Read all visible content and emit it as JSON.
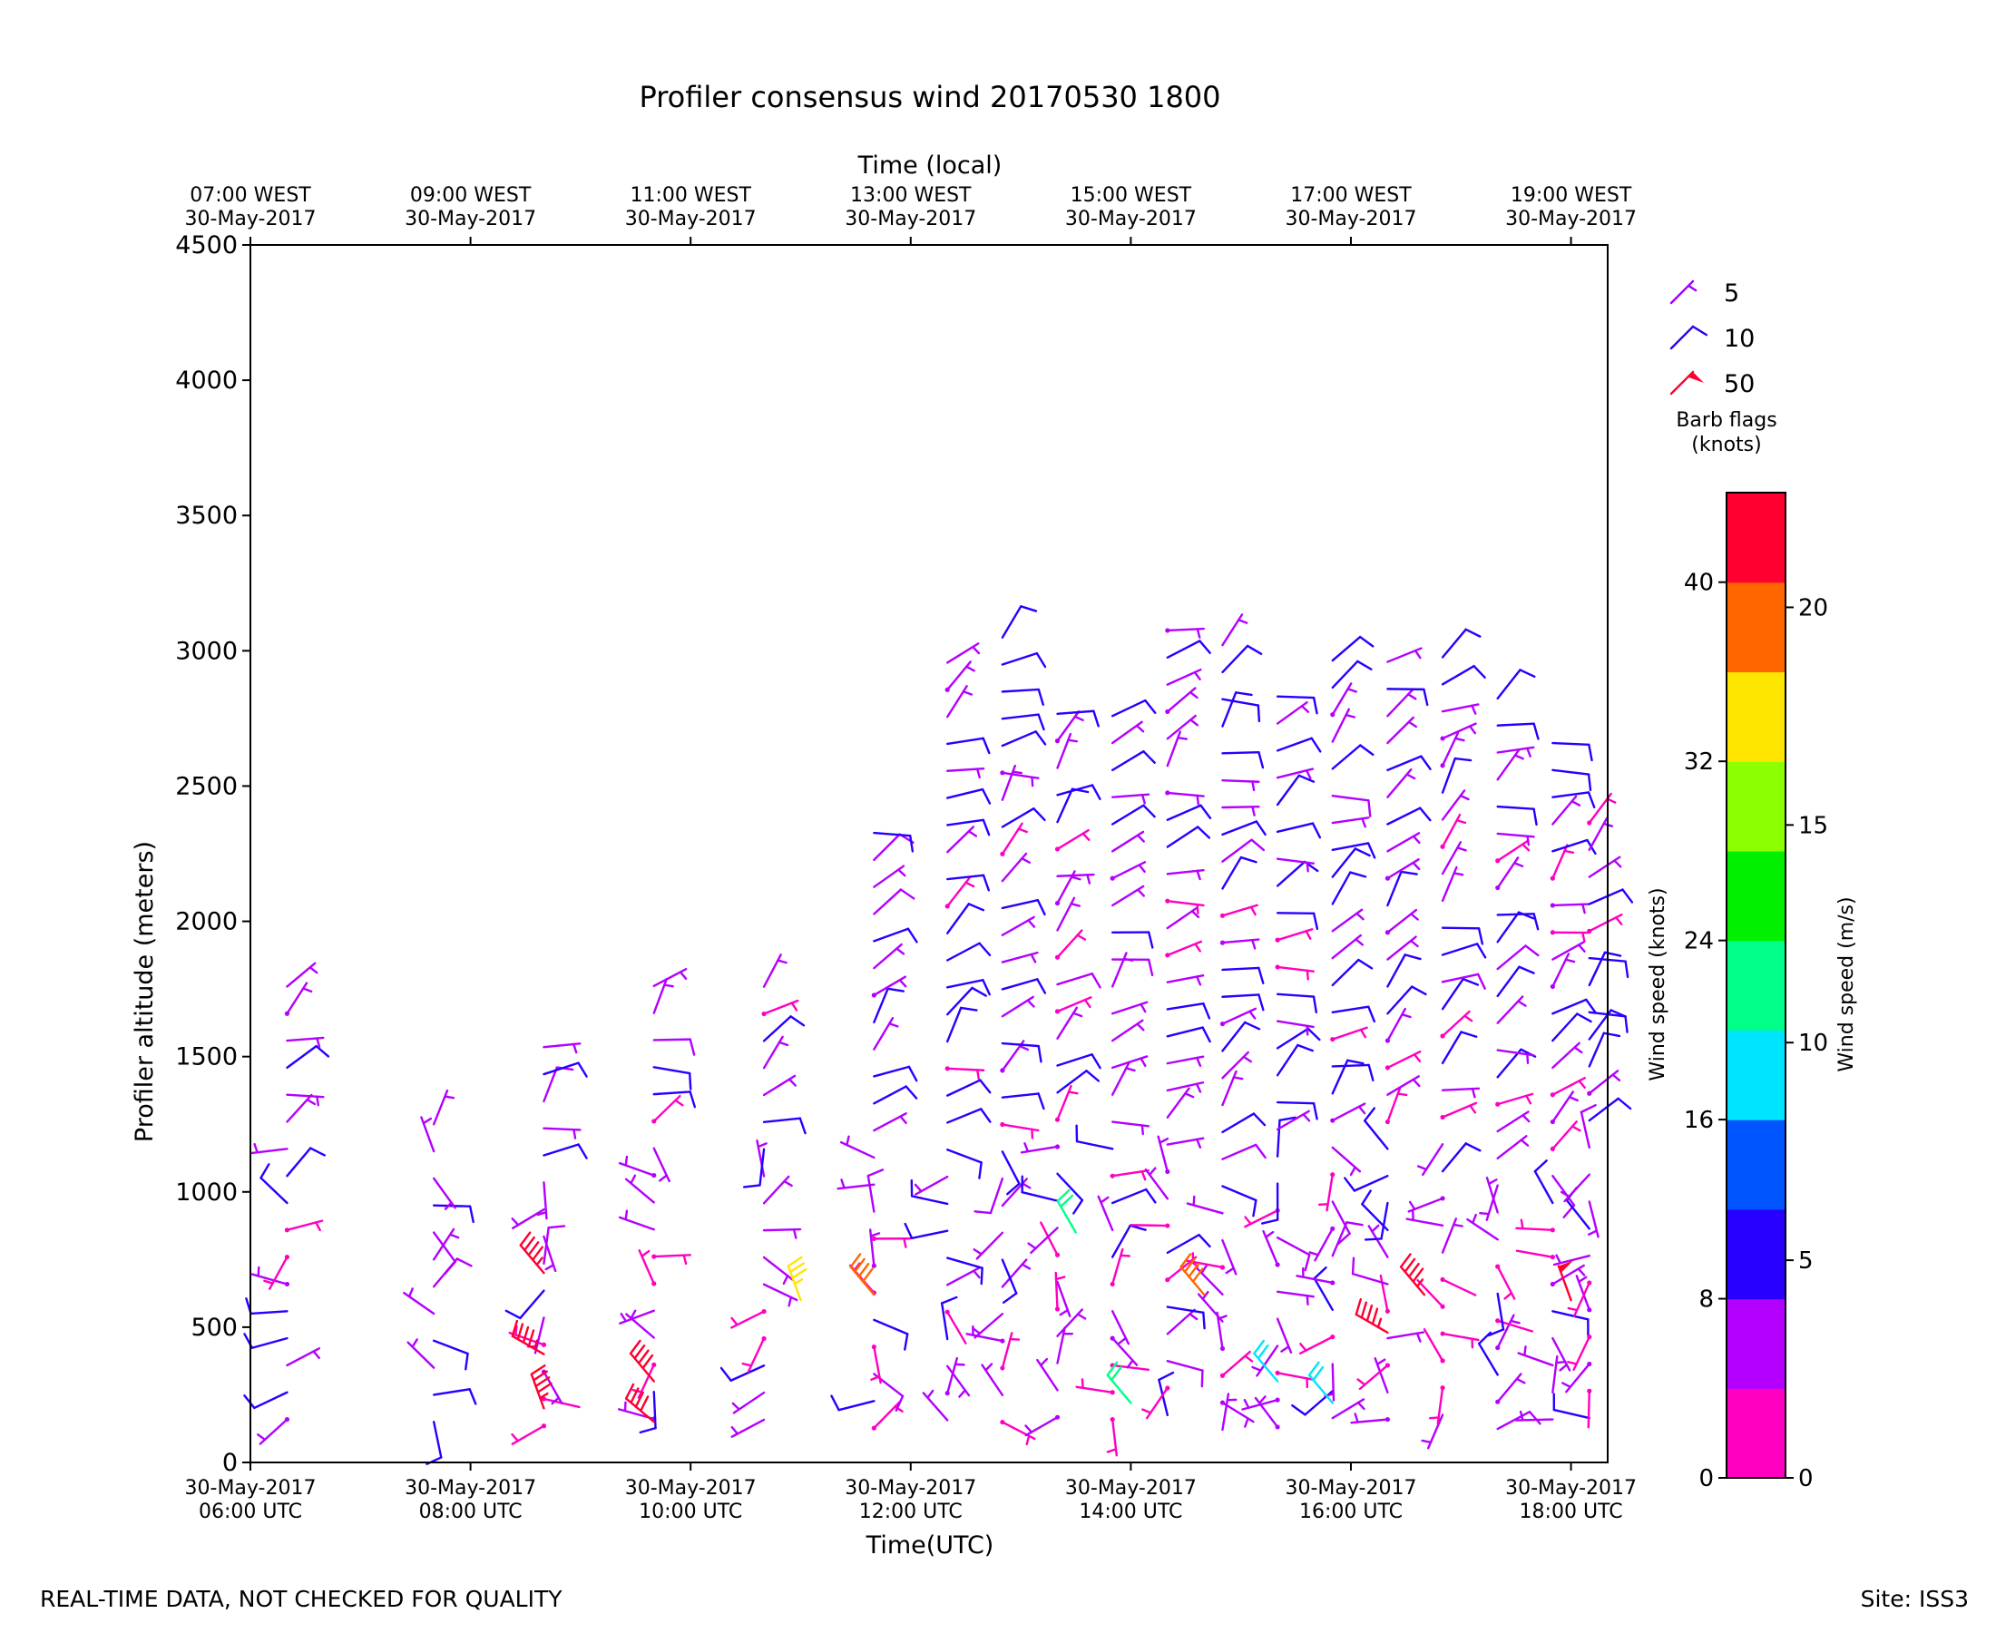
{
  "chart_data": {
    "type": "wind-barb-time-height",
    "title": "Profiler consensus wind 20170530 1800",
    "xlabel": "Time(UTC)",
    "xlabel_top": "Time (local)",
    "ylabel": "Profiler altitude (meters)",
    "ylim": [
      0,
      4500
    ],
    "yticks": [
      0,
      500,
      1000,
      1500,
      2000,
      2500,
      3000,
      3500,
      4000,
      4500
    ],
    "x_start": "2017-05-30 06:00 UTC",
    "x_end": "2017-05-30 18:20 UTC",
    "xticks_bottom": [
      {
        "line1": "30-May-2017",
        "line2": "06:00 UTC"
      },
      {
        "line1": "30-May-2017",
        "line2": "08:00 UTC"
      },
      {
        "line1": "30-May-2017",
        "line2": "10:00 UTC"
      },
      {
        "line1": "30-May-2017",
        "line2": "12:00 UTC"
      },
      {
        "line1": "30-May-2017",
        "line2": "14:00 UTC"
      },
      {
        "line1": "30-May-2017",
        "line2": "16:00 UTC"
      },
      {
        "line1": "30-May-2017",
        "line2": "18:00 UTC"
      }
    ],
    "xticks_top": [
      {
        "line1": "07:00 WEST",
        "line2": "30-May-2017"
      },
      {
        "line1": "09:00 WEST",
        "line2": "30-May-2017"
      },
      {
        "line1": "11:00 WEST",
        "line2": "30-May-2017"
      },
      {
        "line1": "13:00 WEST",
        "line2": "30-May-2017"
      },
      {
        "line1": "15:00 WEST",
        "line2": "30-May-2017"
      },
      {
        "line1": "17:00 WEST",
        "line2": "30-May-2017"
      },
      {
        "line1": "19:00 WEST",
        "line2": "30-May-2017"
      }
    ],
    "legend": {
      "entries": [
        {
          "label": "5",
          "color": "#9b00ff"
        },
        {
          "label": "10",
          "color": "#2b00f0"
        },
        {
          "label": "50",
          "color": "#ff0030"
        }
      ],
      "title_line1": "Barb flags",
      "title_line2": "(knots)",
      "placement": "top-right"
    },
    "colorbar": {
      "label_left": "Wind speed (knots)",
      "label_right": "Wind speed (m/s)",
      "ticks_knots": [
        "0",
        "8",
        "16",
        "24",
        "32",
        "40"
      ],
      "ticks_ms": [
        "0",
        "5",
        "10",
        "15",
        "20"
      ],
      "max_knots": 44,
      "band_colors": [
        "#ff00c0",
        "#b400ff",
        "#2800ff",
        "#0055ff",
        "#00e5ff",
        "#00ff88",
        "#00f000",
        "#8cff00",
        "#ffe600",
        "#ff6600",
        "#ff0030"
      ]
    },
    "profiles": [
      {
        "time": "06:20",
        "alt_max": 1800
      },
      {
        "time": "07:40",
        "alt_max": 1300
      },
      {
        "time": "08:40",
        "alt_max": 1580
      },
      {
        "time": "09:40",
        "alt_max": 1780
      },
      {
        "time": "10:40",
        "alt_max": 1850
      },
      {
        "time": "11:40",
        "alt_max": 2390
      },
      {
        "time": "12:20",
        "alt_max": 3040
      },
      {
        "time": "12:50",
        "alt_max": 3100
      },
      {
        "time": "13:20",
        "alt_max": 2850
      },
      {
        "time": "13:50",
        "alt_max": 2850
      },
      {
        "time": "14:20",
        "alt_max": 3100
      },
      {
        "time": "14:50",
        "alt_max": 3080
      },
      {
        "time": "15:20",
        "alt_max": 2850
      },
      {
        "time": "15:50",
        "alt_max": 2990
      },
      {
        "time": "16:20",
        "alt_max": 3010
      },
      {
        "time": "16:50",
        "alt_max": 3000
      },
      {
        "time": "17:20",
        "alt_max": 2850
      },
      {
        "time": "17:50",
        "alt_max": 2750
      },
      {
        "time": "18:10",
        "alt_max": 2400
      }
    ],
    "notable_barbs": [
      {
        "time": "08:40",
        "alt_m": 700,
        "speed_kt": 45
      },
      {
        "time": "08:40",
        "alt_m": 400,
        "speed_kt": 45
      },
      {
        "time": "08:40",
        "alt_m": 200,
        "speed_kt": 45
      },
      {
        "time": "09:40",
        "alt_m": 300,
        "speed_kt": 42
      },
      {
        "time": "09:40",
        "alt_m": 150,
        "speed_kt": 42
      },
      {
        "time": "11:00",
        "alt_m": 600,
        "speed_kt": 34
      },
      {
        "time": "11:40",
        "alt_m": 620,
        "speed_kt": 38
      },
      {
        "time": "13:30",
        "alt_m": 850,
        "speed_kt": 22
      },
      {
        "time": "14:00",
        "alt_m": 220,
        "speed_kt": 22
      },
      {
        "time": "14:40",
        "alt_m": 620,
        "speed_kt": 38
      },
      {
        "time": "15:20",
        "alt_m": 300,
        "speed_kt": 18
      },
      {
        "time": "15:50",
        "alt_m": 220,
        "speed_kt": 19
      },
      {
        "time": "16:20",
        "alt_m": 480,
        "speed_kt": 45
      },
      {
        "time": "16:40",
        "alt_m": 620,
        "speed_kt": 45
      },
      {
        "time": "18:00",
        "alt_m": 600,
        "speed_kt": 50
      }
    ]
  },
  "footer": {
    "left": "REAL-TIME DATA, NOT CHECKED FOR QUALITY",
    "right": "Site: ISS3"
  }
}
